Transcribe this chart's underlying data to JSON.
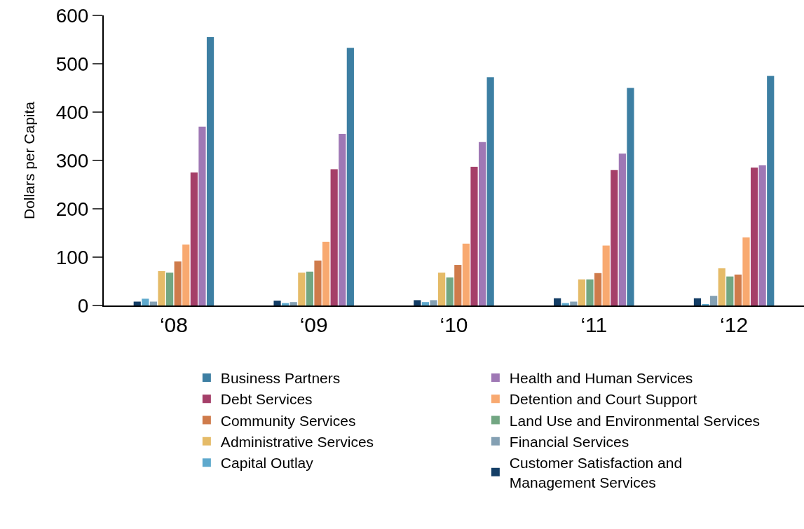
{
  "chart_data": {
    "type": "bar",
    "ylabel": "Dollars per Capita",
    "categories": [
      "‘08",
      "‘09",
      "‘10",
      "‘11",
      "‘12"
    ],
    "ylim": [
      0,
      600
    ],
    "yticks": [
      0,
      100,
      200,
      300,
      400,
      500,
      600
    ],
    "legend": "bottom",
    "series": [
      {
        "name": "Customer Satisfaction and Management Services",
        "color": "#143e66",
        "values": [
          8,
          10,
          11,
          15,
          15
        ]
      },
      {
        "name": "Capital Outlay",
        "color": "#5ea9cd",
        "values": [
          14,
          5,
          7,
          5,
          3
        ]
      },
      {
        "name": "Financial Services",
        "color": "#84a0b3",
        "values": [
          8,
          7,
          11,
          8,
          20
        ]
      },
      {
        "name": "Administrative Services",
        "color": "#e5bb68",
        "values": [
          71,
          68,
          68,
          54,
          77
        ]
      },
      {
        "name": "Land Use and Environmental Services",
        "color": "#72a682",
        "values": [
          68,
          70,
          58,
          54,
          60
        ]
      },
      {
        "name": "Community Services",
        "color": "#cf7b4b",
        "values": [
          91,
          93,
          84,
          67,
          64
        ]
      },
      {
        "name": "Detention and Court Support",
        "color": "#f8a970",
        "values": [
          126,
          132,
          128,
          124,
          141
        ]
      },
      {
        "name": "Debt Services",
        "color": "#a53f69",
        "values": [
          275,
          282,
          287,
          280,
          285
        ]
      },
      {
        "name": "Health and Human Services",
        "color": "#9f78b5",
        "values": [
          370,
          355,
          338,
          314,
          290
        ]
      },
      {
        "name": "Business Partners",
        "color": "#3d7fa3",
        "values": [
          555,
          533,
          472,
          450,
          475
        ]
      }
    ]
  }
}
